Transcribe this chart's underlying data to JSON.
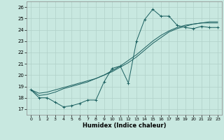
{
  "title": "",
  "xlabel": "Humidex (Indice chaleur)",
  "xlim": [
    -0.5,
    23.5
  ],
  "ylim": [
    16.5,
    26.5
  ],
  "yticks": [
    17,
    18,
    19,
    20,
    21,
    22,
    23,
    24,
    25,
    26
  ],
  "xticks": [
    0,
    1,
    2,
    3,
    4,
    5,
    6,
    7,
    8,
    9,
    10,
    11,
    12,
    13,
    14,
    15,
    16,
    17,
    18,
    19,
    20,
    21,
    22,
    23
  ],
  "bg_color": "#c8e8e0",
  "line_color": "#1a5f5f",
  "grid_color": "#b0d0c8",
  "series": [
    {
      "x": [
        0,
        1,
        2,
        3,
        4,
        5,
        6,
        7,
        8,
        9,
        10,
        11,
        12,
        13,
        14,
        15,
        16,
        17,
        18,
        19,
        20,
        21,
        22,
        23
      ],
      "y": [
        18.7,
        18.0,
        18.0,
        17.6,
        17.2,
        17.3,
        17.5,
        17.8,
        17.8,
        19.4,
        20.6,
        20.8,
        19.3,
        23.0,
        24.9,
        25.8,
        25.2,
        25.2,
        24.4,
        24.2,
        24.1,
        24.3,
        24.2,
        24.2
      ],
      "marker": "+"
    },
    {
      "x": [
        0,
        1,
        2,
        3,
        4,
        5,
        6,
        7,
        8,
        9,
        10,
        11,
        12,
        13,
        14,
        15,
        16,
        17,
        18,
        19,
        20,
        21,
        22,
        23
      ],
      "y": [
        18.7,
        18.2,
        18.3,
        18.5,
        18.8,
        19.0,
        19.2,
        19.4,
        19.7,
        20.0,
        20.4,
        20.8,
        21.3,
        21.8,
        22.4,
        23.0,
        23.5,
        23.9,
        24.2,
        24.4,
        24.5,
        24.6,
        24.6,
        24.6
      ],
      "marker": null
    },
    {
      "x": [
        0,
        1,
        2,
        3,
        4,
        5,
        6,
        7,
        8,
        9,
        10,
        11,
        12,
        13,
        14,
        15,
        16,
        17,
        18,
        19,
        20,
        21,
        22,
        23
      ],
      "y": [
        18.7,
        18.4,
        18.5,
        18.7,
        18.9,
        19.1,
        19.3,
        19.5,
        19.7,
        20.0,
        20.3,
        20.7,
        21.1,
        21.6,
        22.2,
        22.8,
        23.3,
        23.8,
        24.1,
        24.3,
        24.5,
        24.6,
        24.7,
        24.7
      ],
      "marker": null
    }
  ]
}
